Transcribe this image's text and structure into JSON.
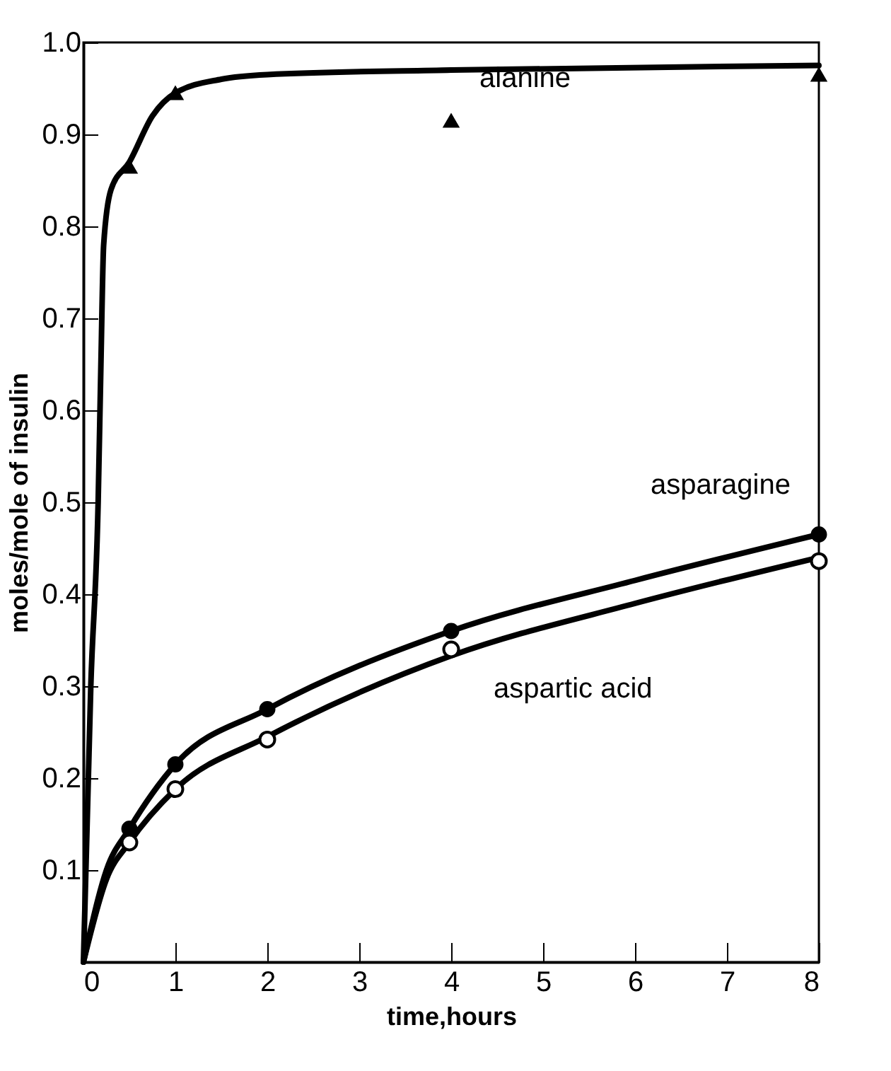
{
  "chart_data": {
    "type": "line",
    "xlabel": "time,hours",
    "ylabel": "moles/mole of insulin",
    "xlim": [
      0,
      8
    ],
    "ylim": [
      0,
      1.0
    ],
    "xticks": [
      0,
      1,
      2,
      3,
      4,
      5,
      6,
      7,
      8
    ],
    "yticks": [
      {
        "value": 0.1,
        "label": "0.1"
      },
      {
        "value": 0.2,
        "label": "0.2"
      },
      {
        "value": 0.3,
        "label": "0.3"
      },
      {
        "value": 0.4,
        "label": "0.4"
      },
      {
        "value": 0.5,
        "label": "0.5"
      },
      {
        "value": 0.6,
        "label": "0.6"
      },
      {
        "value": 0.7,
        "label": "0.7"
      },
      {
        "value": 0.8,
        "label": "0.8"
      },
      {
        "value": 0.9,
        "label": "0.9"
      },
      {
        "value": 1.0,
        "label": "1.0"
      }
    ],
    "grid": false,
    "line_style": "solid",
    "series": [
      {
        "name": "alanine",
        "type": "scatter",
        "marker": "triangle",
        "color": "#000000",
        "x": [
          0.5,
          1,
          4,
          8
        ],
        "values": [
          0.865,
          0.945,
          0.915,
          0.965
        ]
      },
      {
        "name": "asparagine",
        "type": "scatter",
        "marker": "circle",
        "color": "#000000",
        "x": [
          0.5,
          1,
          2,
          4,
          8
        ],
        "values": [
          0.145,
          0.215,
          0.275,
          0.36,
          0.465
        ]
      },
      {
        "name": "aspartic acid",
        "type": "scatter",
        "marker": "circle",
        "color": "#ffffff",
        "x": [
          0.5,
          1,
          2,
          4,
          8
        ],
        "values": [
          0.13,
          0.188,
          0.242,
          0.34,
          0.436
        ]
      },
      {
        "color": "#000000",
        "x": [
          0,
          0.08,
          0.16,
          0.19,
          0.22,
          0.3,
          0.5,
          0.75,
          1,
          1.5,
          2,
          4,
          8
        ],
        "values": [
          0,
          0.3,
          0.5,
          0.65,
          0.78,
          0.84,
          0.87,
          0.92,
          0.945,
          0.96,
          0.965,
          0.97,
          0.975
        ]
      },
      {
        "color": "#000000",
        "x": [
          0,
          0.25,
          0.5,
          1,
          2,
          4,
          6,
          8
        ],
        "values": [
          0,
          0.1,
          0.145,
          0.215,
          0.275,
          0.36,
          0.415,
          0.465
        ]
      },
      {
        "color": "#000000",
        "x": [
          0,
          0.25,
          0.5,
          1,
          2,
          4,
          6,
          8
        ],
        "values": [
          0,
          0.09,
          0.13,
          0.188,
          0.245,
          0.333,
          0.39,
          0.44
        ]
      }
    ]
  }
}
